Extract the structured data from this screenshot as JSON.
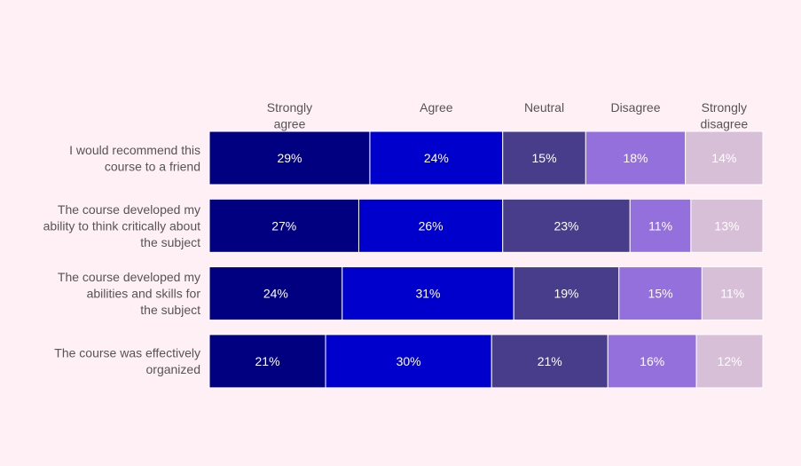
{
  "chart_data": {
    "type": "bar",
    "orientation": "horizontal",
    "stacked": true,
    "legend_placement": "top",
    "grid": false,
    "xlim": [
      0,
      100
    ],
    "categories": [
      [
        "I would recommend this",
        "course to a friend"
      ],
      [
        "The course developed my",
        "ability to think critically about",
        "the subject"
      ],
      [
        "The course developed my",
        "abilities and skills for",
        "the subject"
      ],
      [
        "The course was effectively",
        "organized"
      ]
    ],
    "series": [
      {
        "name": [
          "Strongly",
          "agree"
        ],
        "color": "#000080",
        "values": [
          29,
          27,
          24,
          21
        ]
      },
      {
        "name": [
          "Agree"
        ],
        "color": "#0000cd",
        "values": [
          24,
          26,
          31,
          30
        ]
      },
      {
        "name": [
          "Neutral"
        ],
        "color": "#483d8b",
        "values": [
          15,
          23,
          19,
          21
        ]
      },
      {
        "name": [
          "Disagree"
        ],
        "color": "#9370db",
        "values": [
          18,
          11,
          15,
          16
        ]
      },
      {
        "name": [
          "Strongly",
          "disagree"
        ],
        "color": "#d8bfd8",
        "values": [
          14,
          13,
          11,
          12
        ]
      }
    ],
    "value_suffix": "%"
  },
  "colors": {
    "background": "#fff0f5",
    "label_text": "#555555",
    "segment_text": "#ffffff",
    "separator": "#ffffff"
  }
}
